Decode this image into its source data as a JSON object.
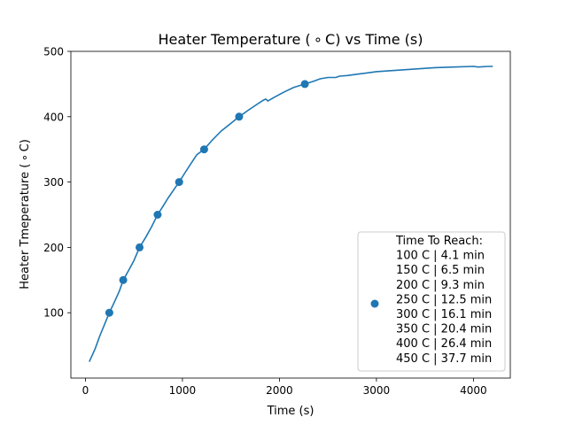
{
  "chart_data": {
    "type": "line",
    "title": "Heater Temperature ($^\\circ$C) vs Time (s)",
    "title_display": "Heater Temperature ( ∘ C) vs Time (s)",
    "xlabel": "Time (s)",
    "ylabel": "Heater Tmeperature ( ∘ C)",
    "xlim": [
      -150,
      4380
    ],
    "ylim": [
      0,
      500
    ],
    "xticks": [
      0,
      1000,
      2000,
      3000,
      4000
    ],
    "yticks": [
      100,
      200,
      300,
      400,
      500
    ],
    "grid": false,
    "legend_position": "lower right",
    "series": [
      {
        "type": "line",
        "color": "#1f77b4",
        "x": [
          40,
          100,
          150,
          200,
          246,
          300,
          350,
          390,
          450,
          500,
          558,
          620,
          680,
          744,
          800,
          850,
          900,
          966,
          1030,
          1100,
          1150,
          1224,
          1300,
          1400,
          1500,
          1584,
          1680,
          1760,
          1830,
          1860,
          1880,
          1950,
          2050,
          2150,
          2262,
          2350,
          2420,
          2500,
          2580,
          2620,
          2700,
          2800,
          2900,
          3000,
          3200,
          3400,
          3600,
          3800,
          4000,
          4050,
          4150,
          4200
        ],
        "y": [
          25,
          45,
          65,
          83,
          100,
          117,
          133,
          150,
          166,
          180,
          200,
          215,
          231,
          250,
          263,
          275,
          286,
          300,
          315,
          331,
          342,
          350,
          363,
          378,
          390,
          400,
          410,
          418,
          425,
          427,
          424,
          430,
          438,
          445,
          450,
          454,
          458,
          460,
          460,
          462,
          463,
          465,
          467,
          469,
          471,
          473,
          475,
          476,
          477,
          476,
          477,
          477
        ]
      },
      {
        "type": "scatter",
        "color": "#1f77b4",
        "name": "Time To Reach:\n100 C | 4.1 min\n150 C | 6.5 min\n200 C | 9.3 min\n250 C | 12.5 min\n300 C | 16.1 min\n350 C | 20.4 min\n400 C | 26.4 min\n450 C | 37.7 min",
        "x": [
          246,
          390,
          558,
          744,
          966,
          1224,
          1584,
          2262
        ],
        "y": [
          100,
          150,
          200,
          250,
          300,
          350,
          400,
          450
        ]
      }
    ],
    "legend_lines": [
      "Time To Reach:",
      "100 C | 4.1 min",
      "150 C | 6.5 min",
      "200 C | 9.3 min",
      "250 C | 12.5 min",
      "300 C | 16.1 min",
      "350 C | 20.4 min",
      "400 C | 26.4 min",
      "450 C | 37.7 min"
    ]
  }
}
